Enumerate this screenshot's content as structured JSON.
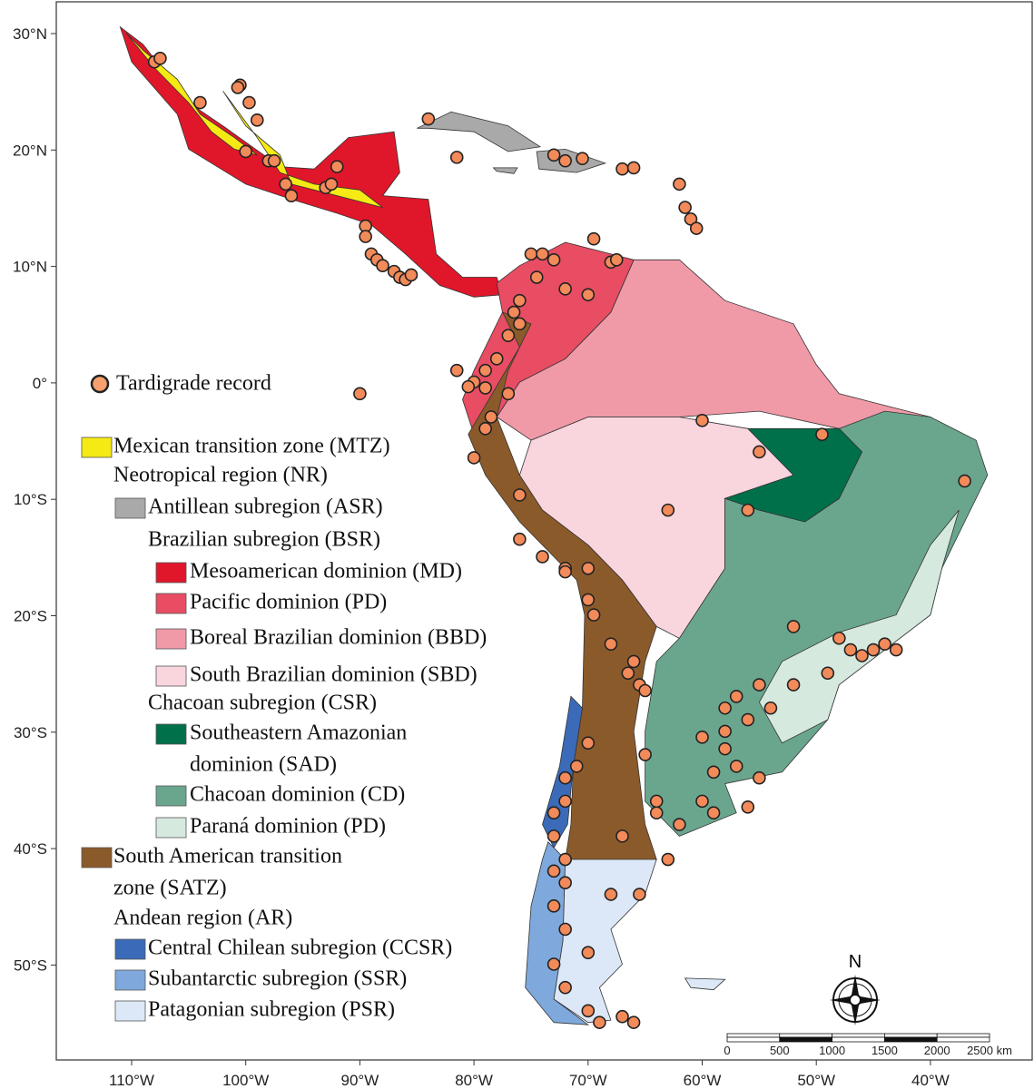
{
  "map": {
    "lat_labels": [
      "30°N",
      "20°N",
      "10°N",
      "0°",
      "10°S",
      "20°S",
      "30°S",
      "40°S",
      "50°S"
    ],
    "lon_labels": [
      "110°W",
      "100°W",
      "90°W",
      "80°W",
      "70°W",
      "60°W",
      "50°W",
      "40°W"
    ],
    "record_label": "Tardigrade record",
    "legend": [
      {
        "lines": [
          "Mexican transition zone (MTZ)"
        ],
        "color": "#f5ea14"
      },
      {
        "lines": [
          "Neotropical region (NR)"
        ]
      },
      {
        "lines": [
          "Antillean subregion (ASR)"
        ],
        "color": "#a9a9a9"
      },
      {
        "lines": [
          "Brazilian subregion (BSR)"
        ]
      },
      {
        "lines": [
          "Mesoamerican dominion (MD)"
        ],
        "color": "#e0172b"
      },
      {
        "lines": [
          "Pacific dominion (PD)"
        ],
        "color": "#e84d63"
      },
      {
        "lines": [
          "Boreal Brazilian dominion (BBD)"
        ],
        "color": "#f09aa8"
      },
      {
        "lines": [
          "South Brazilian dominion (SBD)"
        ],
        "color": "#f9d5de"
      },
      {
        "lines": [
          "Chacoan subregion (CSR)"
        ]
      },
      {
        "lines": [
          "Southeastern Amazonian",
          "dominion (SAD)"
        ],
        "color": "#00704a"
      },
      {
        "lines": [
          "Chacoan dominion (CD)"
        ],
        "color": "#6aa68e"
      },
      {
        "lines": [
          "Paraná dominion (PD)"
        ],
        "color": "#d6e9df"
      },
      {
        "lines": [
          "South American transition",
          "zone (SATZ)"
        ],
        "color": "#8b5a2b"
      },
      {
        "lines": [
          "Andean region (AR)"
        ]
      },
      {
        "lines": [
          "Central Chilean subregion (CCSR)"
        ],
        "color": "#3b6bb8"
      },
      {
        "lines": [
          "Subantarctic subregion (SSR)"
        ],
        "color": "#7fa9dd"
      },
      {
        "lines": [
          "Patagonian subregion (PSR)"
        ],
        "color": "#dce8f7"
      }
    ],
    "scale_labels": [
      "0",
      "500",
      "1000",
      "1500",
      "2000",
      "2500 km"
    ],
    "north": "N"
  }
}
